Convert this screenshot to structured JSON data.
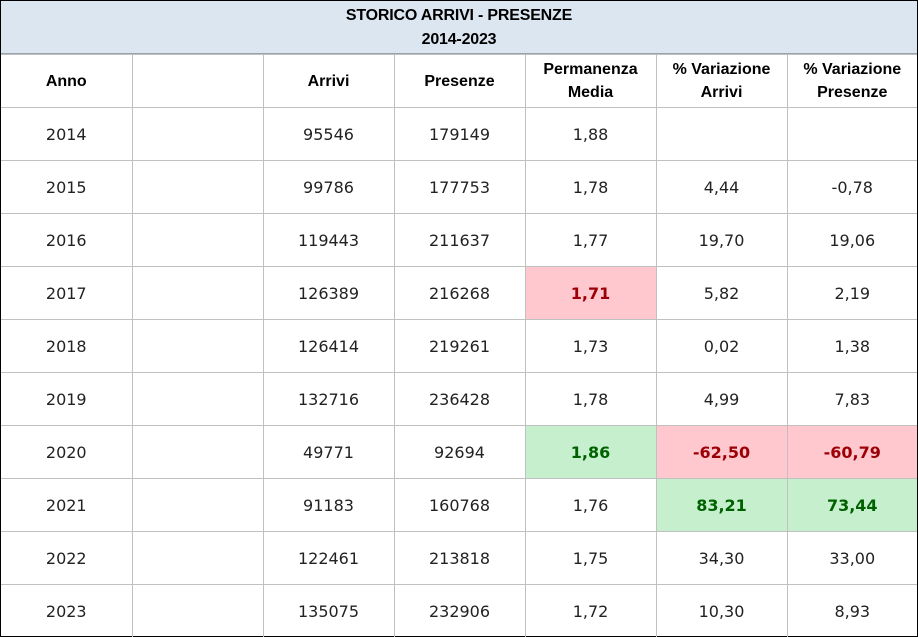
{
  "title": "STORICO ARRIVI - PRESENZE",
  "subtitle": "2014-2023",
  "headers": {
    "anno": "Anno",
    "blank": "",
    "arrivi": "Arrivi",
    "presenze": "Presenze",
    "permanenza_1": "Permanenza",
    "permanenza_2": "Media",
    "var_arrivi_1": "% Variazione",
    "var_arrivi_2": "Arrivi",
    "var_presenze_1": "% Variazione",
    "var_presenze_2": "Presenze"
  },
  "colors": {
    "header_bg": "#dce6f1",
    "negative_bg": "#ffc7ce",
    "negative_text": "#9c0006",
    "positive_bg": "#c6efce",
    "positive_text": "#006100"
  },
  "rows": [
    {
      "anno": "2014",
      "arrivi": "95546",
      "presenze": "179149",
      "permanenza": "1,88",
      "var_arrivi": "",
      "var_presenze": ""
    },
    {
      "anno": "2015",
      "arrivi": "99786",
      "presenze": "177753",
      "permanenza": "1,78",
      "var_arrivi": "4,44",
      "var_presenze": "-0,78"
    },
    {
      "anno": "2016",
      "arrivi": "119443",
      "presenze": "211637",
      "permanenza": "1,77",
      "var_arrivi": "19,70",
      "var_presenze": "19,06"
    },
    {
      "anno": "2017",
      "arrivi": "126389",
      "presenze": "216268",
      "permanenza": "1,71",
      "var_arrivi": "5,82",
      "var_presenze": "2,19"
    },
    {
      "anno": "2018",
      "arrivi": "126414",
      "presenze": "219261",
      "permanenza": "1,73",
      "var_arrivi": "0,02",
      "var_presenze": "1,38"
    },
    {
      "anno": "2019",
      "arrivi": "132716",
      "presenze": "236428",
      "permanenza": "1,78",
      "var_arrivi": "4,99",
      "var_presenze": "7,83"
    },
    {
      "anno": "2020",
      "arrivi": "49771",
      "presenze": "92694",
      "permanenza": "1,86",
      "var_arrivi": "-62,50",
      "var_presenze": "-60,79"
    },
    {
      "anno": "2021",
      "arrivi": "91183",
      "presenze": "160768",
      "permanenza": "1,76",
      "var_arrivi": "83,21",
      "var_presenze": "73,44"
    },
    {
      "anno": "2022",
      "arrivi": "122461",
      "presenze": "213818",
      "permanenza": "1,75",
      "var_arrivi": "34,30",
      "var_presenze": "33,00"
    },
    {
      "anno": "2023",
      "arrivi": "135075",
      "presenze": "232906",
      "permanenza": "1,72",
      "var_arrivi": "10,30",
      "var_presenze": "8,93"
    }
  ]
}
